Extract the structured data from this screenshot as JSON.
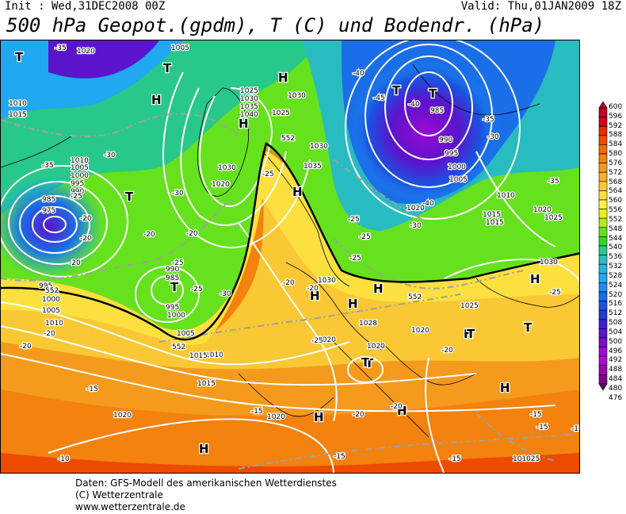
{
  "header": {
    "init": "Init : Wed,31DEC2008 00Z",
    "valid": "Valid: Thu,01JAN2009 18Z",
    "title": "500 hPa Geopot.(gpdm), T (C) und Bodendr. (hPa)"
  },
  "legend": {
    "values": [
      "600",
      "596",
      "592",
      "588",
      "584",
      "580",
      "576",
      "572",
      "568",
      "564",
      "560",
      "556",
      "552",
      "548",
      "544",
      "540",
      "536",
      "532",
      "528",
      "524",
      "520",
      "516",
      "512",
      "508",
      "504",
      "500",
      "496",
      "492",
      "488",
      "484",
      "480",
      "476"
    ],
    "colors": [
      "#b0003c",
      "#c0002a",
      "#d40018",
      "#e42a00",
      "#ee4a00",
      "#f26a06",
      "#f3820e",
      "#f59a1c",
      "#f7b028",
      "#f9c834",
      "#fbe040",
      "#fff050",
      "#e8f020",
      "#b0ec1e",
      "#66e11e",
      "#30d628",
      "#28c88a",
      "#28bcc0",
      "#28b4e2",
      "#20a8f0",
      "#1e8cf0",
      "#1a6ee8",
      "#1a52e0",
      "#2038d8",
      "#3a22d2",
      "#5a14cc",
      "#7a0cd0",
      "#9a08d4",
      "#b00ad2",
      "#9a0aa8",
      "#7c0888",
      "#5c066a"
    ]
  },
  "map": {
    "labels": [
      {
        "t": "H"
      },
      {
        "t": "H"
      },
      {
        "t": "H"
      },
      {
        "t": "H"
      },
      {
        "t": "H"
      },
      {
        "t": "H"
      },
      {
        "t": "H"
      },
      {
        "t": "H"
      },
      {
        "t": "H"
      },
      {
        "t": "H"
      },
      {
        "t": "H"
      },
      {
        "t": "H"
      },
      {
        "t": "H"
      },
      {
        "t": "T"
      },
      {
        "t": "T"
      },
      {
        "t": "T"
      },
      {
        "t": "T"
      },
      {
        "t": "T"
      },
      {
        "t": "T"
      },
      {
        "t": "T"
      },
      {
        "t": "T"
      },
      {
        "t": "T"
      },
      {
        "t": "T"
      },
      {
        "t": "1020"
      },
      {
        "t": "1005"
      },
      {
        "t": "-35"
      },
      {
        "t": "1010"
      },
      {
        "t": "1015"
      },
      {
        "t": "1025"
      },
      {
        "t": "1030"
      },
      {
        "t": "1035"
      },
      {
        "t": "1040"
      },
      {
        "t": "1025"
      },
      {
        "t": "1030"
      },
      {
        "t": "-40"
      },
      {
        "t": "-45"
      },
      {
        "t": "-40"
      },
      {
        "t": "985"
      },
      {
        "t": "-35"
      },
      {
        "t": "-30"
      },
      {
        "t": "990"
      },
      {
        "t": "995"
      },
      {
        "t": "1000"
      },
      {
        "t": "1005"
      },
      {
        "t": "1010"
      },
      {
        "t": "1015"
      },
      {
        "t": "1020"
      },
      {
        "t": "1025"
      },
      {
        "t": "-35"
      },
      {
        "t": "1030"
      },
      {
        "t": "-40"
      },
      {
        "t": "-30"
      },
      {
        "t": "-25"
      },
      {
        "t": "1020"
      },
      {
        "t": "1015"
      },
      {
        "t": "1030"
      },
      {
        "t": "1035"
      },
      {
        "t": "1020"
      },
      {
        "t": "1030"
      },
      {
        "t": "-25"
      },
      {
        "t": "-30"
      },
      {
        "t": "1010"
      },
      {
        "t": "1005"
      },
      {
        "t": "1000"
      },
      {
        "t": "995"
      },
      {
        "t": "990"
      },
      {
        "t": "985"
      },
      {
        "t": "975"
      },
      {
        "t": "-20"
      },
      {
        "t": "-25"
      },
      {
        "t": "-35"
      },
      {
        "t": "-30"
      },
      {
        "t": "-20"
      },
      {
        "t": "-20"
      },
      {
        "t": "-20"
      },
      {
        "t": "-25"
      },
      {
        "t": "-20"
      },
      {
        "t": "990"
      },
      {
        "t": "985"
      },
      {
        "t": "995"
      },
      {
        "t": "1000"
      },
      {
        "t": "1005"
      },
      {
        "t": "-25"
      },
      {
        "t": "995"
      },
      {
        "t": "1000"
      },
      {
        "t": "1005"
      },
      {
        "t": "1010"
      },
      {
        "t": "-20"
      },
      {
        "t": "1015"
      },
      {
        "t": "1010"
      },
      {
        "t": "1015"
      },
      {
        "t": "-30"
      },
      {
        "t": "-20"
      },
      {
        "t": "-20"
      },
      {
        "t": "1030"
      },
      {
        "t": "-25"
      },
      {
        "t": "-25"
      },
      {
        "t": "1028"
      },
      {
        "t": "1020"
      },
      {
        "t": "1020"
      },
      {
        "t": "1025"
      },
      {
        "t": "-25"
      },
      {
        "t": "1020"
      },
      {
        "t": "-20"
      },
      {
        "t": "1030"
      },
      {
        "t": "-25"
      },
      {
        "t": "-15"
      },
      {
        "t": "-15"
      },
      {
        "t": "1020"
      },
      {
        "t": "-15"
      },
      {
        "t": "1020"
      },
      {
        "t": "-20"
      },
      {
        "t": "-20"
      },
      {
        "t": "-15"
      },
      {
        "t": "-10"
      },
      {
        "t": "-15"
      },
      {
        "t": "-15"
      },
      {
        "t": "101025"
      },
      {
        "t": "-20"
      },
      {
        "t": "-15"
      },
      {
        "t": "552"
      },
      {
        "t": "552"
      },
      {
        "t": "552"
      },
      {
        "t": "552"
      }
    ]
  },
  "footer": {
    "line1": "Daten: GFS-Modell des amerikanischen Wetterdienstes",
    "line2": "(C) Wetterzentrale",
    "line3": "www.wetterzentrale.de"
  }
}
